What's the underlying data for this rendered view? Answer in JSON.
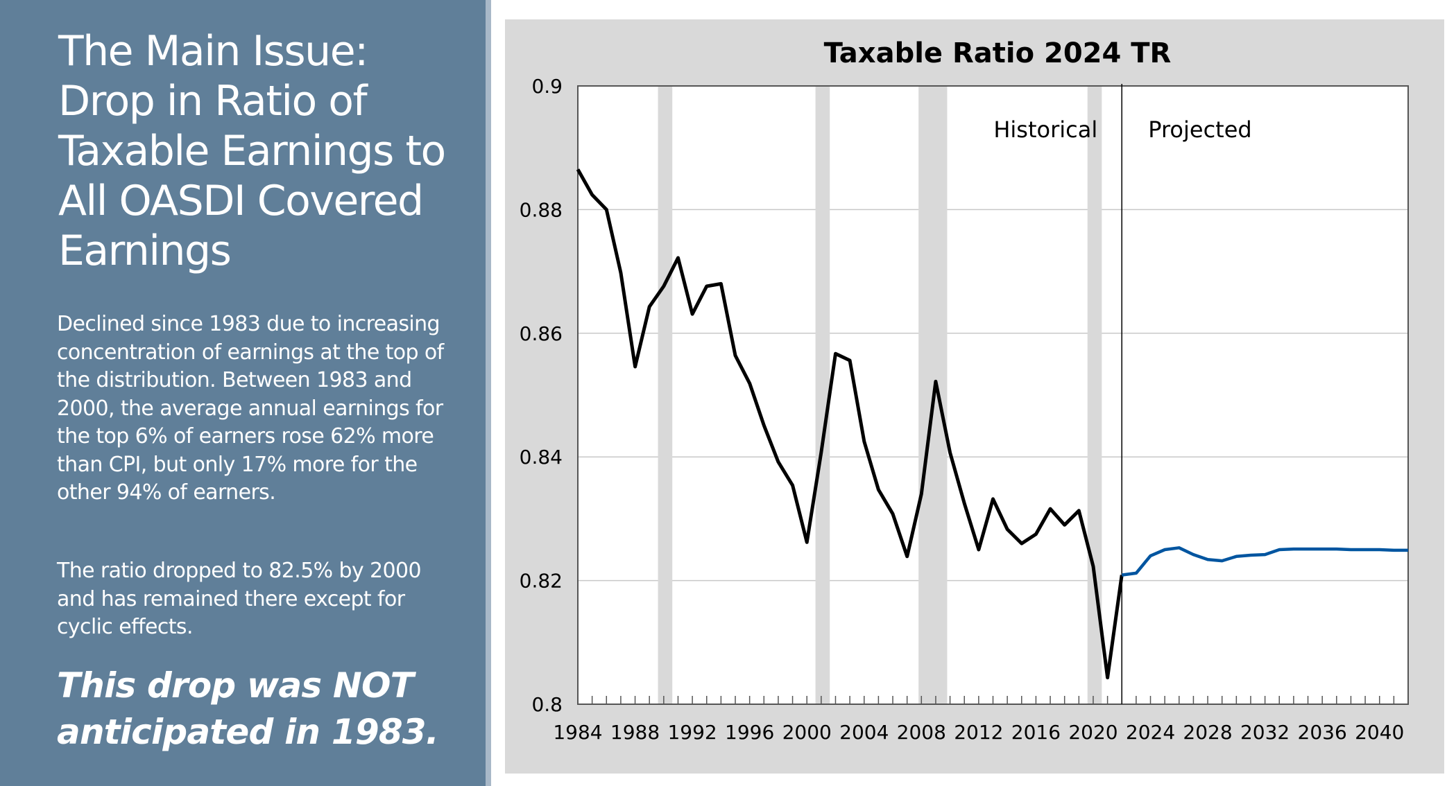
{
  "slide": {
    "title": "The Main Issue: Drop in Ratio of Taxable Earnings to All OASDI Covered Earnings",
    "paragraph1": "Declined since 1983 due to increasing concentration of earnings at the top of the distribution. Between 1983 and 2000, the average annual earnings for the top 6% of earners rose 62% more than CPI, but only 17% more for the other 94% of earners.",
    "paragraph2": "The ratio dropped to 82.5% by 2000 and has remained there except for cyclic effects.",
    "callout": "This drop was NOT anticipated in 1983."
  },
  "chart_data": {
    "type": "line",
    "title": "Taxable Ratio 2024 TR",
    "xlabel": "",
    "ylabel": "",
    "xlim": [
      1984,
      2042
    ],
    "ylim": [
      0.8,
      0.9
    ],
    "yticks": [
      0.8,
      0.82,
      0.84,
      0.86,
      0.88,
      0.9
    ],
    "ytick_labels": [
      "0.8",
      "0.82",
      "0.84",
      "0.86",
      "0.88",
      "0.9"
    ],
    "xtick_labels": [
      "1984",
      "1988",
      "1992",
      "1996",
      "2000",
      "2004",
      "2008",
      "2012",
      "2016",
      "2020",
      "2024",
      "2028",
      "2032",
      "2036",
      "2040"
    ],
    "grid": true,
    "annotations": {
      "historical": "Historical",
      "projected": "Projected",
      "divider_year": 2022
    },
    "recession_bands": [
      [
        1989.6,
        1990.6
      ],
      [
        2000.6,
        2001.6
      ],
      [
        2007.8,
        2009.8
      ],
      [
        2019.6,
        2020.6
      ]
    ],
    "colors": {
      "historical": "#000000",
      "projected": "#0055a0",
      "band": "#d9d9d9",
      "grid": "#c8c8c8"
    },
    "series": [
      {
        "name": "Historical",
        "x": [
          1984,
          1985,
          1986,
          1987,
          1988,
          1989,
          1990,
          1991,
          1992,
          1993,
          1994,
          1995,
          1996,
          1997,
          1998,
          1999,
          2000,
          2001,
          2002,
          2003,
          2004,
          2005,
          2006,
          2007,
          2008,
          2009,
          2010,
          2011,
          2012,
          2013,
          2014,
          2015,
          2016,
          2017,
          2018,
          2019,
          2020,
          2021,
          2022
        ],
        "values": [
          0.8865,
          0.8824,
          0.88,
          0.8698,
          0.8546,
          0.8643,
          0.8676,
          0.8722,
          0.8631,
          0.8676,
          0.868,
          0.8564,
          0.8519,
          0.8451,
          0.8392,
          0.8354,
          0.8262,
          0.8407,
          0.8567,
          0.8556,
          0.8425,
          0.8347,
          0.8308,
          0.8239,
          0.834,
          0.8522,
          0.8407,
          0.8325,
          0.825,
          0.8332,
          0.8283,
          0.826,
          0.8275,
          0.8316,
          0.829,
          0.8313,
          0.8223,
          0.8043,
          0.8209
        ]
      },
      {
        "name": "Projected",
        "x": [
          2022,
          2023,
          2024,
          2025,
          2026,
          2027,
          2028,
          2029,
          2030,
          2031,
          2032,
          2033,
          2034,
          2035,
          2036,
          2037,
          2038,
          2039,
          2040,
          2041,
          2042
        ],
        "values": [
          0.8209,
          0.8212,
          0.824,
          0.825,
          0.8253,
          0.8242,
          0.8234,
          0.8232,
          0.8239,
          0.8241,
          0.8242,
          0.825,
          0.8251,
          0.8251,
          0.8251,
          0.8251,
          0.825,
          0.825,
          0.825,
          0.8249,
          0.8249
        ]
      }
    ]
  }
}
